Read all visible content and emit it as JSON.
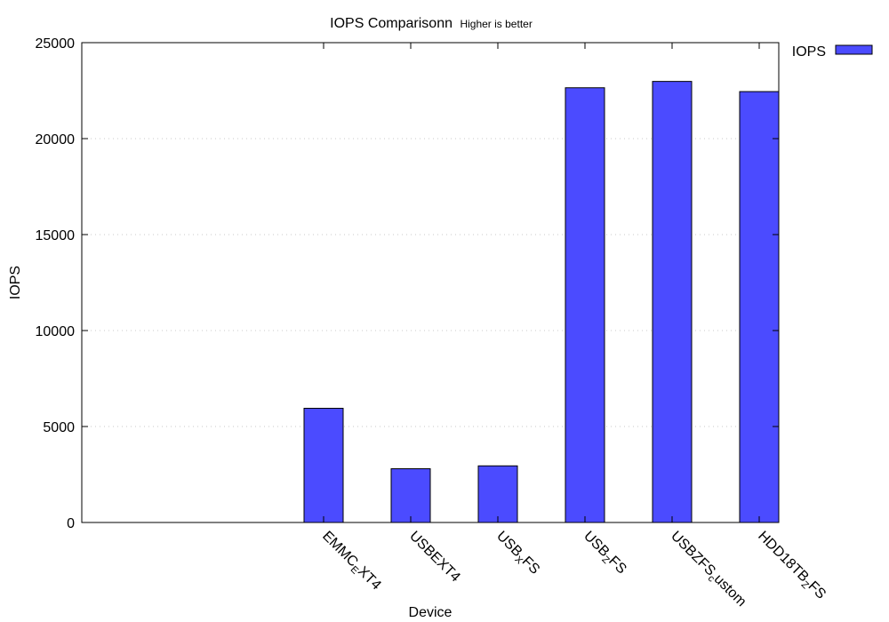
{
  "chart_data": {
    "type": "bar",
    "title": "IOPS Comparisonn",
    "subtitle": "Higher is better",
    "xlabel": "Device",
    "ylabel": "IOPS",
    "ylim": [
      0,
      25000
    ],
    "yticks": [
      "0",
      "5000",
      "10000",
      "15000",
      "20000",
      "25000"
    ],
    "grid": "y dotted",
    "legend_position": "outside-right",
    "colors": {
      "bar": "#4b4bff",
      "bar_edge": "#000000"
    },
    "categories": [
      {
        "base": "EMMC",
        "sub": "E",
        "rest": "XT4"
      },
      {
        "base": "USBEXT4",
        "sub": "",
        "rest": ""
      },
      {
        "base": "USB",
        "sub": "X",
        "rest": "FS"
      },
      {
        "base": "USB",
        "sub": "Z",
        "rest": "FS"
      },
      {
        "base": "USBZFS",
        "sub": "c",
        "rest": "ustom"
      },
      {
        "base": "HDD18TB",
        "sub": "Z",
        "rest": "FS"
      }
    ],
    "series": [
      {
        "name": "IOPS",
        "values": [
          5950,
          2800,
          2950,
          22650,
          22980,
          22450
        ]
      }
    ]
  }
}
